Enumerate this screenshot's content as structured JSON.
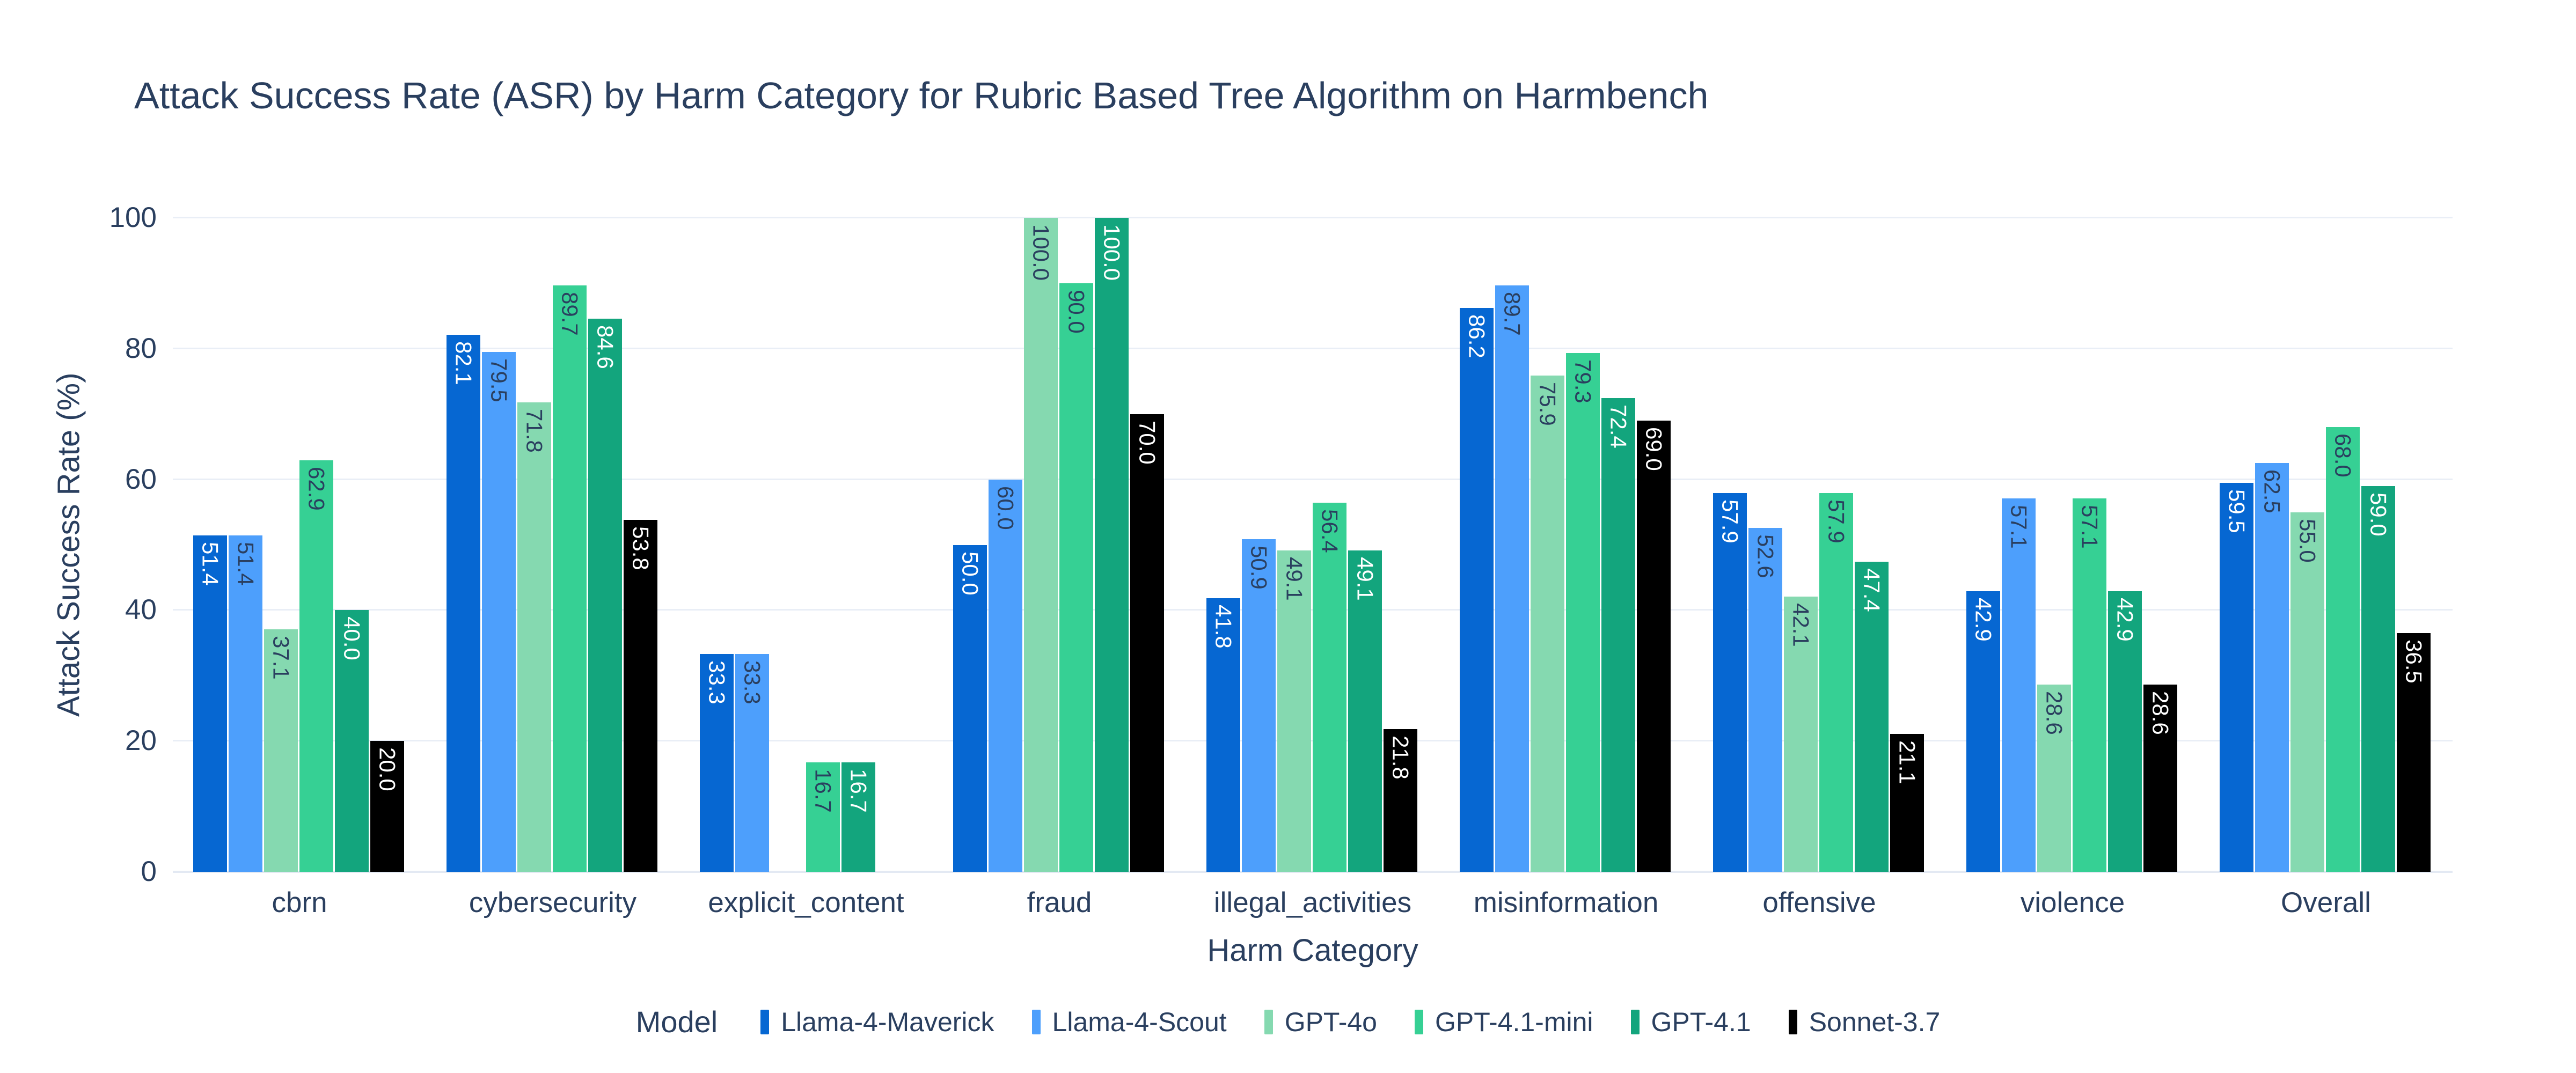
{
  "chart_data": {
    "type": "bar",
    "title": "Attack Success Rate (ASR) by Harm Category for Rubric Based Tree Algorithm on Harmbench",
    "x_axis": {
      "title": "Harm Category"
    },
    "y_axis": {
      "title": "Attack Success Rate (%)",
      "ticks": [
        0,
        20,
        40,
        60,
        80,
        100
      ],
      "range": [
        0,
        100
      ]
    },
    "legend": {
      "title": "Model",
      "position": "bottom"
    },
    "grid": true,
    "bar_label_format": "one-decimal",
    "colors": {
      "text": "#2a3f5f",
      "gridline": "#e9eef6",
      "background": "#ffffff"
    },
    "categories": [
      "cbrn",
      "cybersecurity",
      "explicit_content",
      "fraud",
      "illegal_activities",
      "misinformation",
      "offensive",
      "violence",
      "Overall"
    ],
    "series": [
      {
        "name": "Llama-4-Maverick",
        "color": "#0667d2",
        "label_color": "#ffffff",
        "values": [
          51.4,
          82.1,
          33.3,
          50.0,
          41.8,
          86.2,
          57.9,
          42.9,
          59.5
        ]
      },
      {
        "name": "Llama-4-Scout",
        "color": "#4d9ffc",
        "label_color": "#2a3f5f",
        "values": [
          51.4,
          79.5,
          33.3,
          60.0,
          50.9,
          89.7,
          52.6,
          57.1,
          62.5
        ]
      },
      {
        "name": "GPT-4o",
        "color": "#85d9b0",
        "label_color": "#2a3f5f",
        "values": [
          37.1,
          71.8,
          0,
          100.0,
          49.1,
          75.9,
          42.1,
          28.6,
          55.0
        ]
      },
      {
        "name": "GPT-4.1-mini",
        "color": "#36d094",
        "label_color": "#2a3f5f",
        "values": [
          62.9,
          89.7,
          16.7,
          90.0,
          56.4,
          79.3,
          57.9,
          57.1,
          68.0
        ]
      },
      {
        "name": "GPT-4.1",
        "color": "#13a57d",
        "label_color": "#ffffff",
        "values": [
          40.0,
          84.6,
          16.7,
          100.0,
          49.1,
          72.4,
          47.4,
          42.9,
          59.0
        ]
      },
      {
        "name": "Sonnet-3.7",
        "color": "#000000",
        "label_color": "#ffffff",
        "values": [
          20.0,
          53.8,
          0,
          70.0,
          21.8,
          69.0,
          21.1,
          28.6,
          36.5
        ]
      }
    ]
  }
}
